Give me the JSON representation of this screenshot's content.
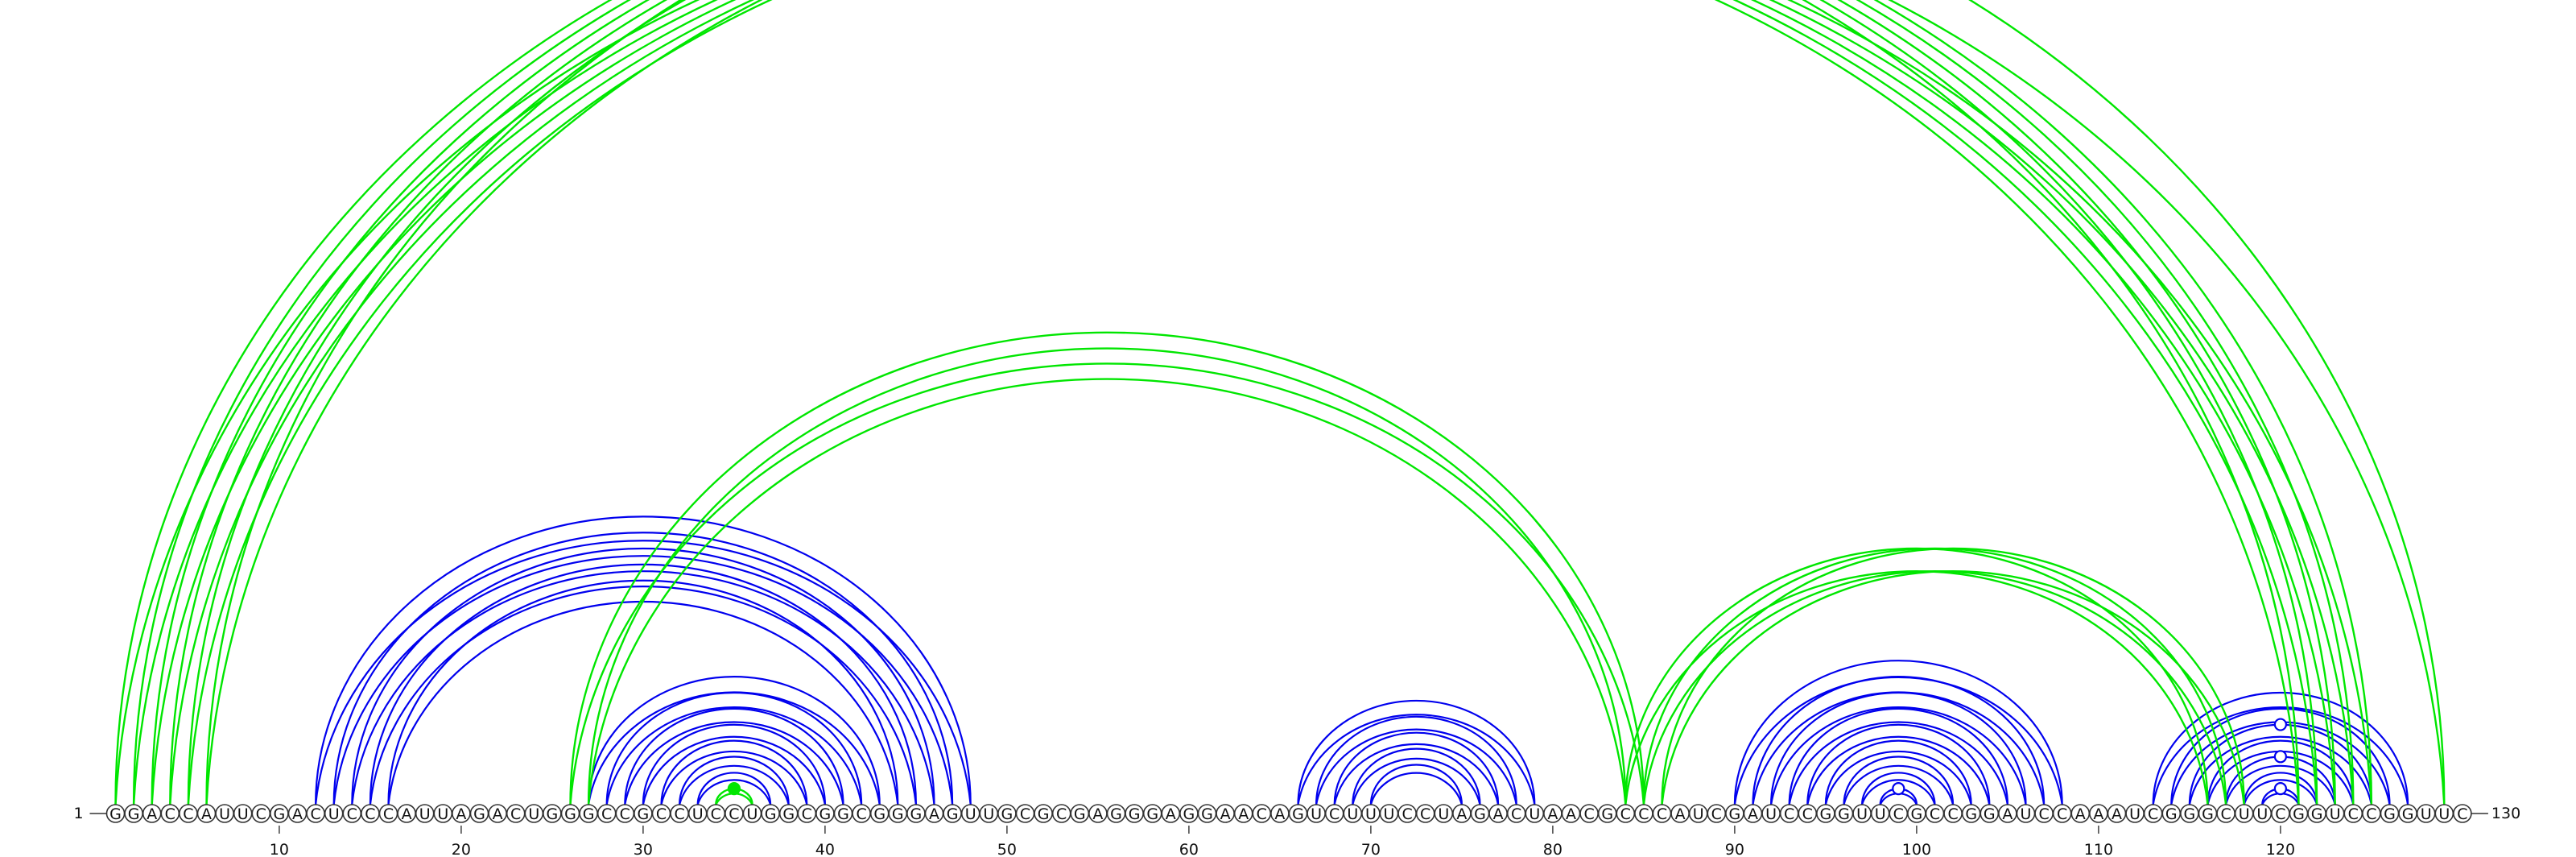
{
  "sequence": "GGACCAUUCGACUCCCAUUAGACUGGGCCGCCUCCUGGCGGCGGGAGUUGCGCGAGGGAGGAACAGUCUUUCCUAGACUAACGCCCAUCGAUCCGGUUCGCCGGAUCCAAAUCGGGCUUCGGUCCGGUUC",
  "labels": {
    "start": "1",
    "end": "130"
  },
  "position_ticks": [
    "10",
    "20",
    "30",
    "40",
    "50",
    "60",
    "70",
    "80",
    "90",
    "100",
    "110",
    "120"
  ],
  "colors": {
    "structure_a": "#0000ee",
    "structure_b": "#00e600",
    "backbone": "#333333"
  },
  "arcs": [
    {
      "color": "blue",
      "pairs": [
        [
          12,
          48
        ],
        [
          13,
          47
        ],
        [
          14,
          46
        ],
        [
          15,
          45
        ],
        [
          16,
          44
        ]
      ]
    },
    {
      "color": "blue",
      "pairs": [
        [
          27,
          43
        ],
        [
          28,
          42
        ],
        [
          29,
          41
        ],
        [
          30,
          40
        ],
        [
          31,
          39
        ],
        [
          32,
          38
        ],
        [
          33,
          37
        ]
      ]
    },
    {
      "color": "green",
      "pairs": [
        [
          34,
          36
        ]
      ]
    },
    {
      "color": "blue",
      "pairs": [
        [
          66,
          79
        ],
        [
          67,
          78
        ],
        [
          68,
          77
        ],
        [
          69,
          76
        ],
        [
          70,
          75
        ]
      ]
    },
    {
      "color": "blue",
      "pairs": [
        [
          90,
          108
        ],
        [
          91,
          107
        ],
        [
          92,
          106
        ],
        [
          93,
          105
        ],
        [
          94,
          104
        ],
        [
          95,
          103
        ],
        [
          96,
          102
        ],
        [
          97,
          101
        ],
        [
          98,
          100
        ]
      ]
    },
    {
      "color": "blue",
      "pairs": [
        [
          113,
          127
        ],
        [
          114,
          126
        ],
        [
          115,
          125
        ],
        [
          116,
          124
        ],
        [
          117,
          123
        ],
        [
          118,
          122
        ],
        [
          119,
          121
        ]
      ]
    },
    {
      "color": "green",
      "pairs": [
        [
          1,
          121
        ],
        [
          2,
          122
        ],
        [
          3,
          123
        ],
        [
          4,
          124
        ],
        [
          5,
          125
        ],
        [
          6,
          129
        ]
      ]
    },
    {
      "color": "green",
      "pairs": [
        [
          26,
          85
        ],
        [
          27,
          84
        ]
      ]
    },
    {
      "color": "green",
      "pairs": [
        [
          84,
          116
        ],
        [
          85,
          117
        ],
        [
          86,
          118
        ]
      ]
    }
  ],
  "markers": [
    {
      "color": "green",
      "between": [
        1,
        129
      ],
      "filled": false
    },
    {
      "color": "green",
      "between": [
        34,
        36
      ],
      "filled": true
    },
    {
      "color": "blue",
      "between": [
        98,
        100
      ],
      "filled": false
    },
    {
      "color": "blue",
      "between": [
        119,
        121
      ],
      "filled": false
    },
    {
      "color": "blue",
      "between": [
        117,
        123
      ],
      "filled": false
    },
    {
      "color": "blue",
      "between": [
        115,
        125
      ],
      "filled": false
    }
  ]
}
